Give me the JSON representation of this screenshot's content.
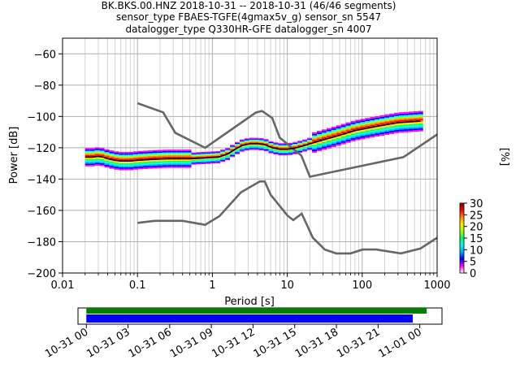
{
  "title_lines": [
    "BK.BKS.00.HNZ   2018-10-31 -- 2018-10-31  (46/46 segments)",
    "sensor_type FBAES-TGFE(4gmax5v_g) sensor_sn 5547",
    "datalogger_type Q330HR-GFE datalogger_sn 4007"
  ],
  "chart_data": {
    "type": "heatmap",
    "xlabel": "Period [s]",
    "ylabel": "Power [dB]",
    "xscale": "log",
    "xlim": [
      0.01,
      1000
    ],
    "ylim": [
      -200,
      -50
    ],
    "x_ticks": [
      {
        "value": 0.01,
        "label": "0.01"
      },
      {
        "value": 0.1,
        "label": "0.1"
      },
      {
        "value": 1,
        "label": "1"
      },
      {
        "value": 10,
        "label": "10"
      },
      {
        "value": 100,
        "label": "100"
      },
      {
        "value": 1000,
        "label": "1000"
      }
    ],
    "y_ticks": [
      {
        "value": -60,
        "label": "−60"
      },
      {
        "value": -80,
        "label": "−80"
      },
      {
        "value": -100,
        "label": "−100"
      },
      {
        "value": -120,
        "label": "−120"
      },
      {
        "value": -140,
        "label": "−140"
      },
      {
        "value": -160,
        "label": "−160"
      },
      {
        "value": -180,
        "label": "−180"
      },
      {
        "value": -200,
        "label": "−200"
      }
    ],
    "grid": true,
    "noise_models": {
      "color": "#666666",
      "high": [
        [
          0.1,
          -91.5
        ],
        [
          0.22,
          -97.4
        ],
        [
          0.32,
          -110.5
        ],
        [
          0.8,
          -120
        ],
        [
          3.8,
          -97.5
        ],
        [
          4.6,
          -96.5
        ],
        [
          6.3,
          -101
        ],
        [
          7.9,
          -113.5
        ],
        [
          15.4,
          -125
        ],
        [
          20,
          -138.5
        ],
        [
          354.8,
          -126
        ],
        [
          1000,
          -111.5
        ]
      ],
      "low": [
        [
          0.1,
          -168
        ],
        [
          0.17,
          -166.7
        ],
        [
          0.4,
          -166.7
        ],
        [
          0.8,
          -169.2
        ],
        [
          1.24,
          -163.7
        ],
        [
          2.4,
          -148.5
        ],
        [
          4.3,
          -141.5
        ],
        [
          5,
          -141.5
        ],
        [
          6,
          -150
        ],
        [
          10,
          -163.2
        ],
        [
          12,
          -166.2
        ],
        [
          15.6,
          -162.1
        ],
        [
          21.9,
          -177.5
        ],
        [
          31.6,
          -185
        ],
        [
          45,
          -187.5
        ],
        [
          70,
          -187.5
        ],
        [
          101,
          -185
        ],
        [
          154,
          -185
        ],
        [
          328,
          -187.5
        ],
        [
          600,
          -184.4
        ],
        [
          1000,
          -177.5
        ]
      ]
    },
    "median_curve": {
      "color": "#000000",
      "points": [
        [
          0.02,
          -126
        ],
        [
          0.025,
          -126
        ],
        [
          0.03,
          -125.5
        ],
        [
          0.035,
          -126
        ],
        [
          0.04,
          -127
        ],
        [
          0.05,
          -128
        ],
        [
          0.06,
          -128.5
        ],
        [
          0.08,
          -128.5
        ],
        [
          0.1,
          -128
        ],
        [
          0.15,
          -127.5
        ],
        [
          0.25,
          -127
        ],
        [
          0.5,
          -127
        ],
        [
          0.8,
          -126.5
        ],
        [
          1.2,
          -126
        ],
        [
          1.6,
          -124
        ],
        [
          2,
          -121
        ],
        [
          2.5,
          -118.5
        ],
        [
          3.2,
          -117.5
        ],
        [
          4,
          -117.5
        ],
        [
          5,
          -118
        ],
        [
          6.3,
          -120
        ],
        [
          8,
          -121
        ],
        [
          10,
          -121
        ],
        [
          12,
          -120.5
        ],
        [
          16,
          -119
        ],
        [
          20,
          -117.5
        ],
        [
          30,
          -115
        ],
        [
          50,
          -112
        ],
        [
          80,
          -109
        ],
        [
          150,
          -106.5
        ],
        [
          300,
          -104
        ],
        [
          600,
          -103
        ]
      ]
    },
    "colorbar": {
      "label": "[%]",
      "range": [
        0,
        30
      ],
      "ticks": [
        {
          "value": 0,
          "label": "0"
        },
        {
          "value": 5,
          "label": "5"
        },
        {
          "value": 10,
          "label": "10"
        },
        {
          "value": 15,
          "label": "15"
        },
        {
          "value": 20,
          "label": "20"
        },
        {
          "value": 25,
          "label": "25"
        },
        {
          "value": 30,
          "label": "30"
        }
      ],
      "colors": [
        "#ffffff",
        "#ff00ff",
        "#0000ff",
        "#00aaff",
        "#00ffee",
        "#00ff66",
        "#aaff00",
        "#ffee00",
        "#ff8800",
        "#ff0000",
        "#880000"
      ]
    },
    "time_axis": {
      "range_hours": [
        -0.6,
        25.6
      ],
      "ticks": [
        {
          "value": 0,
          "label": "10-31 00"
        },
        {
          "value": 3,
          "label": "10-31 03"
        },
        {
          "value": 6,
          "label": "10-31 06"
        },
        {
          "value": 9,
          "label": "10-31 09"
        },
        {
          "value": 12,
          "label": "10-31 12"
        },
        {
          "value": 15,
          "label": "10-31 15"
        },
        {
          "value": 18,
          "label": "10-31 18"
        },
        {
          "value": 21,
          "label": "10-31 21"
        },
        {
          "value": 24,
          "label": "11-01 00"
        }
      ],
      "bars": [
        {
          "name": "data",
          "color": "#008000",
          "start_hour": 0,
          "end_hour": 24.5
        },
        {
          "name": "used",
          "color": "#0000ff",
          "start_hour": 0,
          "end_hour": 23.5
        }
      ]
    }
  }
}
